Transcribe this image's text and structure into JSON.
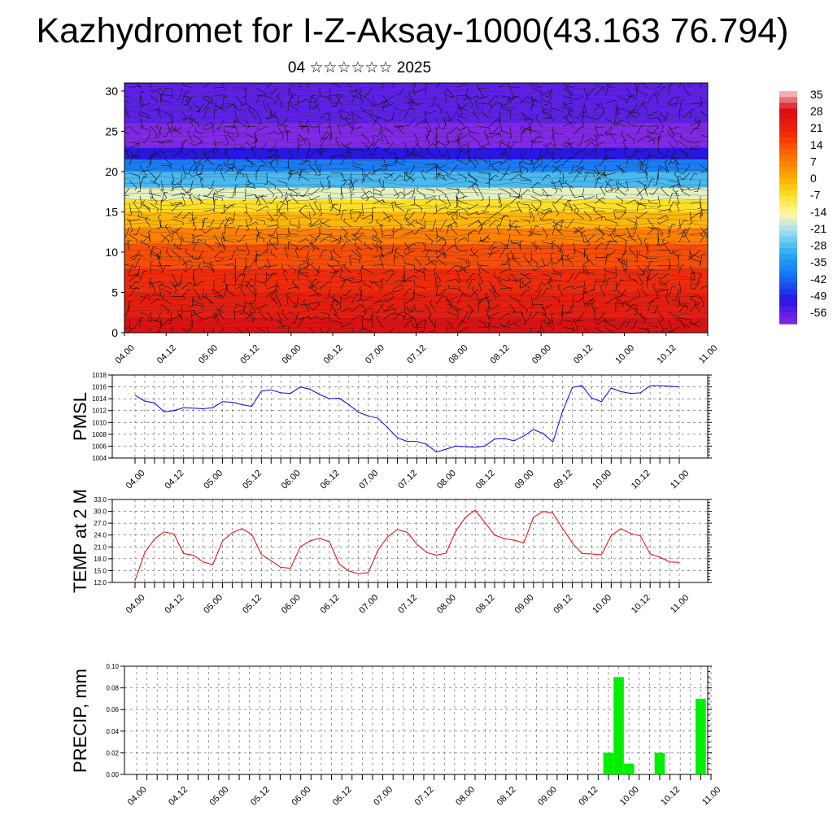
{
  "title": "Kazhydromet for I-Z-Aksay-1000(43.163 76.794)",
  "subtitle": "04 ☆☆☆☆☆☆ 2025",
  "chart_data": [
    {
      "type": "heatmap",
      "name": "cross-section",
      "x_ticks": [
        "04.00",
        "04.12",
        "05.00",
        "05.12",
        "06.00",
        "06.12",
        "07.00",
        "07.12",
        "08.00",
        "08.12",
        "09.00",
        "09.12",
        "10.00",
        "10.12",
        "11.00"
      ],
      "y_ticks": [
        0,
        5,
        10,
        15,
        20,
        25,
        30
      ],
      "ylim": [
        0,
        31
      ],
      "colorbar": {
        "labels": [
          35,
          28,
          21,
          14,
          7,
          0,
          -7,
          -14,
          -21,
          -28,
          -35,
          -42,
          -49,
          -56
        ],
        "range": [
          -60,
          38
        ]
      },
      "bands": [
        {
          "upper_y": 2,
          "value": 28
        },
        {
          "upper_y": 5,
          "value": 24
        },
        {
          "upper_y": 8,
          "value": 20
        },
        {
          "upper_y": 11,
          "value": 15
        },
        {
          "upper_y": 13,
          "value": 8
        },
        {
          "upper_y": 15,
          "value": 0
        },
        {
          "upper_y": 16.5,
          "value": -6
        },
        {
          "upper_y": 18,
          "value": -16
        },
        {
          "upper_y": 20,
          "value": -28
        },
        {
          "upper_y": 21.5,
          "value": -38
        },
        {
          "upper_y": 23,
          "value": -50
        },
        {
          "upper_y": 26,
          "value": -60
        },
        {
          "upper_y": 31,
          "value": -56
        }
      ],
      "wind_barbs": true
    },
    {
      "type": "line",
      "name": "pmsl",
      "ylabel": "PMSL",
      "x_ticks": [
        "04.00",
        "04.12",
        "05.00",
        "05.12",
        "06.00",
        "06.12",
        "07.00",
        "07.12",
        "08.00",
        "08.12",
        "09.00",
        "09.12",
        "10.00",
        "10.12",
        "11.00"
      ],
      "y_ticks": [
        "1004",
        "1006",
        "1008",
        "1010",
        "1012",
        "1014",
        "1016",
        "1018"
      ],
      "ylim": [
        1004,
        1018
      ],
      "color": "#0000ff",
      "values": [
        1014.6,
        1013.6,
        1013.3,
        1011.8,
        1012.0,
        1012.5,
        1012.4,
        1012.3,
        1012.5,
        1013.5,
        1013.4,
        1013.0,
        1012.7,
        1015.3,
        1015.5,
        1015.0,
        1014.9,
        1016.0,
        1015.6,
        1014.7,
        1014.0,
        1014.1,
        1013.0,
        1011.7,
        1011.1,
        1010.7,
        1009.1,
        1007.4,
        1006.8,
        1006.8,
        1006.3,
        1005.0,
        1005.5,
        1006.0,
        1005.9,
        1005.8,
        1006.0,
        1007.2,
        1007.3,
        1006.9,
        1007.7,
        1008.8,
        1008.1,
        1006.7,
        1011.9,
        1015.9,
        1016.2,
        1014.1,
        1013.5,
        1015.8,
        1015.2,
        1014.9,
        1015.0,
        1016.2,
        1016.2,
        1016.1,
        1016.0
      ]
    },
    {
      "type": "line",
      "name": "temp",
      "ylabel": "TEMP at 2 M",
      "x_ticks": [
        "04.00",
        "04.12",
        "05.00",
        "05.12",
        "06.00",
        "06.12",
        "07.00",
        "07.12",
        "08.00",
        "08.12",
        "09.00",
        "09.12",
        "10.00",
        "10.12",
        "11.00"
      ],
      "y_ticks": [
        "12.0",
        "15.0",
        "18.0",
        "21.0",
        "24.0",
        "27.0",
        "30.0",
        "33.0"
      ],
      "ylim": [
        12,
        33
      ],
      "color": "#ee0000",
      "values": [
        12.5,
        19.5,
        23.0,
        24.8,
        24.3,
        19.3,
        18.9,
        17.2,
        16.5,
        22.5,
        24.6,
        25.6,
        24.2,
        19.1,
        17.5,
        15.8,
        15.6,
        21.0,
        22.5,
        23.2,
        22.3,
        16.7,
        14.9,
        14.2,
        14.5,
        20.2,
        23.6,
        25.4,
        24.7,
        21.7,
        19.6,
        18.9,
        19.4,
        25.0,
        28.5,
        30.3,
        27.2,
        24.0,
        23.1,
        22.7,
        22.0,
        28.5,
        30.0,
        29.5,
        25.7,
        22.0,
        19.3,
        19.2,
        19.0,
        23.9,
        25.6,
        24.4,
        23.8,
        19.2,
        18.4,
        17.2,
        17.1
      ]
    },
    {
      "type": "bar",
      "name": "precip",
      "ylabel": "PRECIP, mm",
      "x_ticks": [
        "04.00",
        "04.12",
        "05.00",
        "05.12",
        "06.00",
        "06.12",
        "07.00",
        "07.12",
        "08.00",
        "08.12",
        "09.00",
        "09.12",
        "10.00",
        "10.12",
        "11.00"
      ],
      "y_ticks": [
        "0.00",
        "0.02",
        "0.04",
        "0.06",
        "0.08",
        "0.10"
      ],
      "ylim": [
        0,
        0.1
      ],
      "color": "#00ee00",
      "values": [
        0,
        0,
        0,
        0,
        0,
        0,
        0,
        0,
        0,
        0,
        0,
        0,
        0,
        0,
        0,
        0,
        0,
        0,
        0,
        0,
        0,
        0,
        0,
        0,
        0,
        0,
        0,
        0,
        0,
        0,
        0,
        0,
        0,
        0,
        0,
        0,
        0,
        0,
        0,
        0,
        0,
        0,
        0,
        0,
        0,
        0,
        0.02,
        0.09,
        0.01,
        0,
        0,
        0.02,
        0,
        0,
        0,
        0.07,
        0
      ]
    }
  ]
}
